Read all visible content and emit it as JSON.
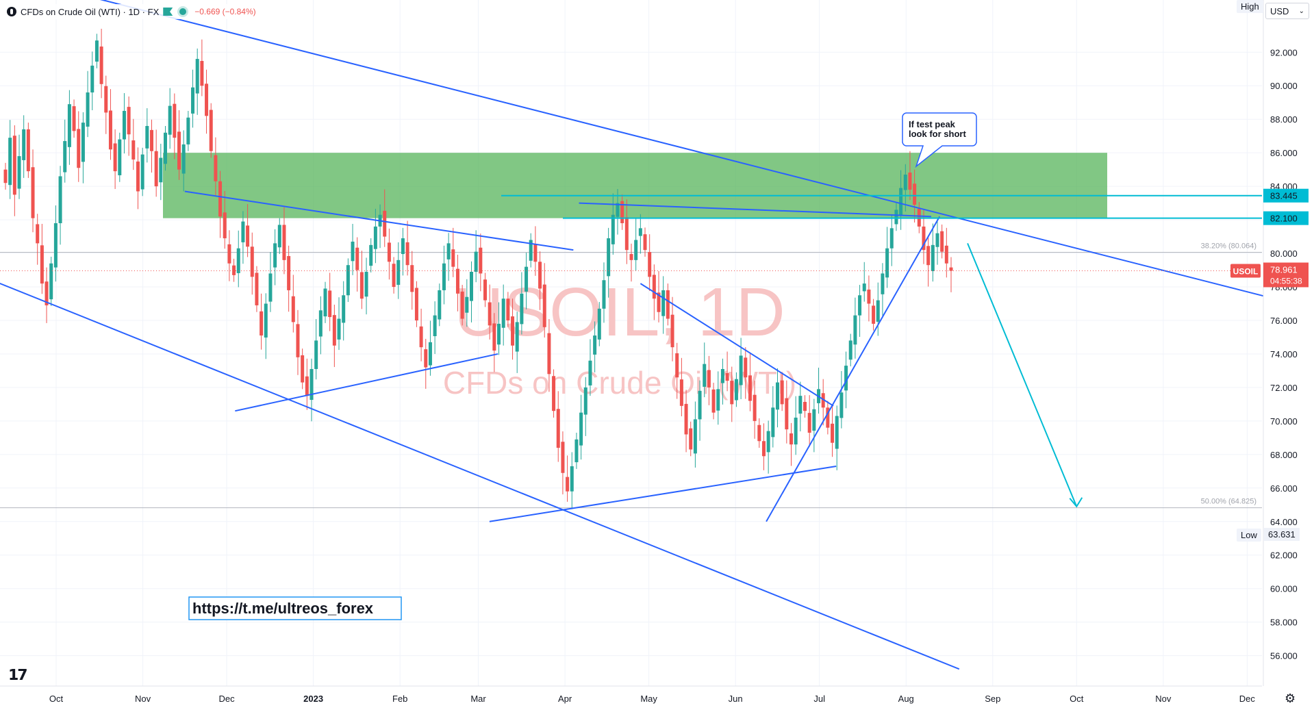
{
  "header": {
    "symbol": "CFDs on Crude Oil (WTI) · 1D · FX",
    "change": "−0.669 (−0.84%)"
  },
  "currency": "USD",
  "watermark": {
    "line1": "USOIL, 1D",
    "line2": "CFDs on Crude Oil (WTI)"
  },
  "colors": {
    "up": "#26a69a",
    "down": "#ef5350",
    "trend": "#2962ff",
    "level": "#00bcd4",
    "zone": "#4caf50",
    "target": "#4a86f0"
  },
  "chart_data": {
    "type": "candlestick",
    "x_ticks": [
      "Oct",
      "Nov",
      "Dec",
      "2023",
      "Feb",
      "Mar",
      "Apr",
      "May",
      "Jun",
      "Jul",
      "Aug",
      "Sep",
      "Oct",
      "Nov",
      "Dec"
    ],
    "y_ticks": [
      "92.000",
      "90.000",
      "88.000",
      "86.000",
      "84.000",
      "82.000",
      "80.000",
      "78.000",
      "76.000",
      "74.000",
      "72.000",
      "70.000",
      "68.000",
      "66.000",
      "64.000",
      "62.000",
      "60.000",
      "58.000",
      "56.000"
    ],
    "ylim": [
      54.8,
      93.4
    ],
    "current_price": {
      "label": "USOIL",
      "value": "78.961",
      "countdown": "04:55:38",
      "price": 78.961
    },
    "levels": [
      {
        "label": "83.445",
        "price": 83.445
      },
      {
        "label": "82.100",
        "price": 82.1
      }
    ],
    "fib": [
      {
        "label": "38.20% (80.064)",
        "price": 80.064
      },
      {
        "label": "50.00% (64.825)",
        "price": 64.825
      }
    ],
    "high_label": "High",
    "low": {
      "label": "Low",
      "value": "63.631",
      "price": 63.631
    },
    "supply_zone": {
      "from": 82.1,
      "to": 86.0
    },
    "target_zone": {
      "from": 64.825,
      "to": 82.1
    },
    "annotation": "If test peak look for short",
    "link": "https://t.me/ultreos_forex",
    "closes": [
      84.2,
      86.9,
      83.5,
      85.8,
      87.4,
      84.9,
      82.1,
      80.6,
      78.2,
      76.9,
      79.4,
      81.8,
      84.6,
      86.7,
      88.9,
      87.3,
      85.1,
      87.8,
      89.6,
      91.2,
      92.7,
      90.1,
      88.4,
      86.2,
      84.9,
      86.8,
      88.5,
      87.1,
      85.6,
      83.7,
      85.9,
      87.6,
      86.1,
      84.0,
      85.7,
      87.2,
      88.8,
      86.9,
      85.0,
      86.5,
      88.1,
      89.9,
      91.6,
      90.0,
      88.2,
      86.1,
      84.3,
      82.2,
      80.9,
      79.4,
      78.7,
      80.3,
      81.9,
      80.4,
      78.6,
      76.9,
      75.1,
      77.0,
      78.8,
      80.6,
      81.7,
      79.6,
      77.8,
      75.9,
      73.8,
      72.3,
      71.5,
      73.1,
      74.8,
      76.6,
      77.9,
      76.2,
      74.5,
      76.1,
      77.5,
      79.3,
      80.7,
      79.0,
      77.3,
      78.9,
      80.5,
      81.6,
      82.3,
      81.0,
      79.5,
      78.0,
      79.6,
      80.9,
      79.3,
      77.7,
      76.0,
      74.4,
      73.2,
      74.7,
      76.3,
      77.8,
      79.4,
      80.6,
      79.2,
      77.6,
      76.1,
      77.4,
      78.9,
      80.1,
      78.8,
      77.2,
      75.7,
      74.2,
      75.8,
      77.3,
      76.0,
      74.5,
      75.9,
      77.6,
      79.2,
      80.8,
      79.5,
      77.9,
      75.6,
      72.8,
      70.6,
      68.4,
      66.9,
      65.8,
      67.3,
      68.9,
      70.5,
      72.0,
      73.6,
      75.1,
      76.7,
      78.4,
      80.9,
      82.3,
      83.0,
      81.8,
      80.2,
      79.6,
      80.8,
      81.5,
      80.2,
      78.6,
      77.3,
      76.5,
      77.8,
      76.1,
      74.4,
      72.6,
      70.9,
      69.2,
      68.3,
      70.1,
      71.8,
      73.4,
      72.0,
      70.5,
      71.9,
      73.1,
      72.4,
      71.0,
      72.5,
      73.9,
      72.6,
      71.2,
      70.0,
      68.8,
      67.9,
      69.4,
      70.8,
      72.3,
      71.0,
      69.5,
      68.6,
      70.2,
      71.5,
      70.6,
      69.3,
      70.7,
      71.9,
      70.8,
      69.6,
      68.7,
      70.3,
      71.7,
      73.3,
      74.8,
      76.3,
      77.5,
      78.2,
      77.0,
      75.8,
      77.2,
      78.8,
      80.3,
      81.5,
      82.6,
      83.9,
      84.7,
      83.8,
      82.9,
      81.6,
      80.2,
      79.3,
      80.5,
      81.2,
      80.1,
      79.4,
      78.96
    ],
    "trendlines": [
      {
        "role": "channel-top",
        "from": [
          "2022-09-08",
          96.8
        ],
        "to": [
          "2023-09-04",
          79.9
        ],
        "extends_to": [
          "2023-12-20",
          76.9
        ]
      },
      {
        "role": "channel-bottom",
        "from": [
          "2022-09-08",
          78.4
        ],
        "to": [
          "2023-08-20",
          55.2
        ]
      },
      {
        "role": "wedge-upper",
        "from": [
          "2022-11-16",
          83.7
        ],
        "to": [
          "2023-04-04",
          80.2
        ]
      },
      {
        "role": "wedge-lower",
        "from": [
          "2022-12-04",
          70.6
        ],
        "to": [
          "2023-03-08",
          74.0
        ]
      },
      {
        "role": "may-june-falling",
        "from": [
          "2023-04-28",
          78.2
        ],
        "to": [
          "2023-07-06",
          70.9
        ]
      },
      {
        "role": "march-june-rising",
        "from": [
          "2023-03-05",
          64.0
        ],
        "to": [
          "2023-07-07",
          67.3
        ]
      },
      {
        "role": "july-aug-rising",
        "from": [
          "2023-06-12",
          64.0
        ],
        "to": [
          "2023-08-13",
          82.2
        ]
      },
      {
        "role": "april-aug-flat",
        "from": [
          "2023-04-06",
          83.0
        ],
        "to": [
          "2023-08-10",
          82.2
        ]
      },
      {
        "role": "projection",
        "from": [
          "2023-08-23",
          80.6
        ],
        "to": [
          "2023-10-01",
          64.9
        ]
      }
    ]
  }
}
